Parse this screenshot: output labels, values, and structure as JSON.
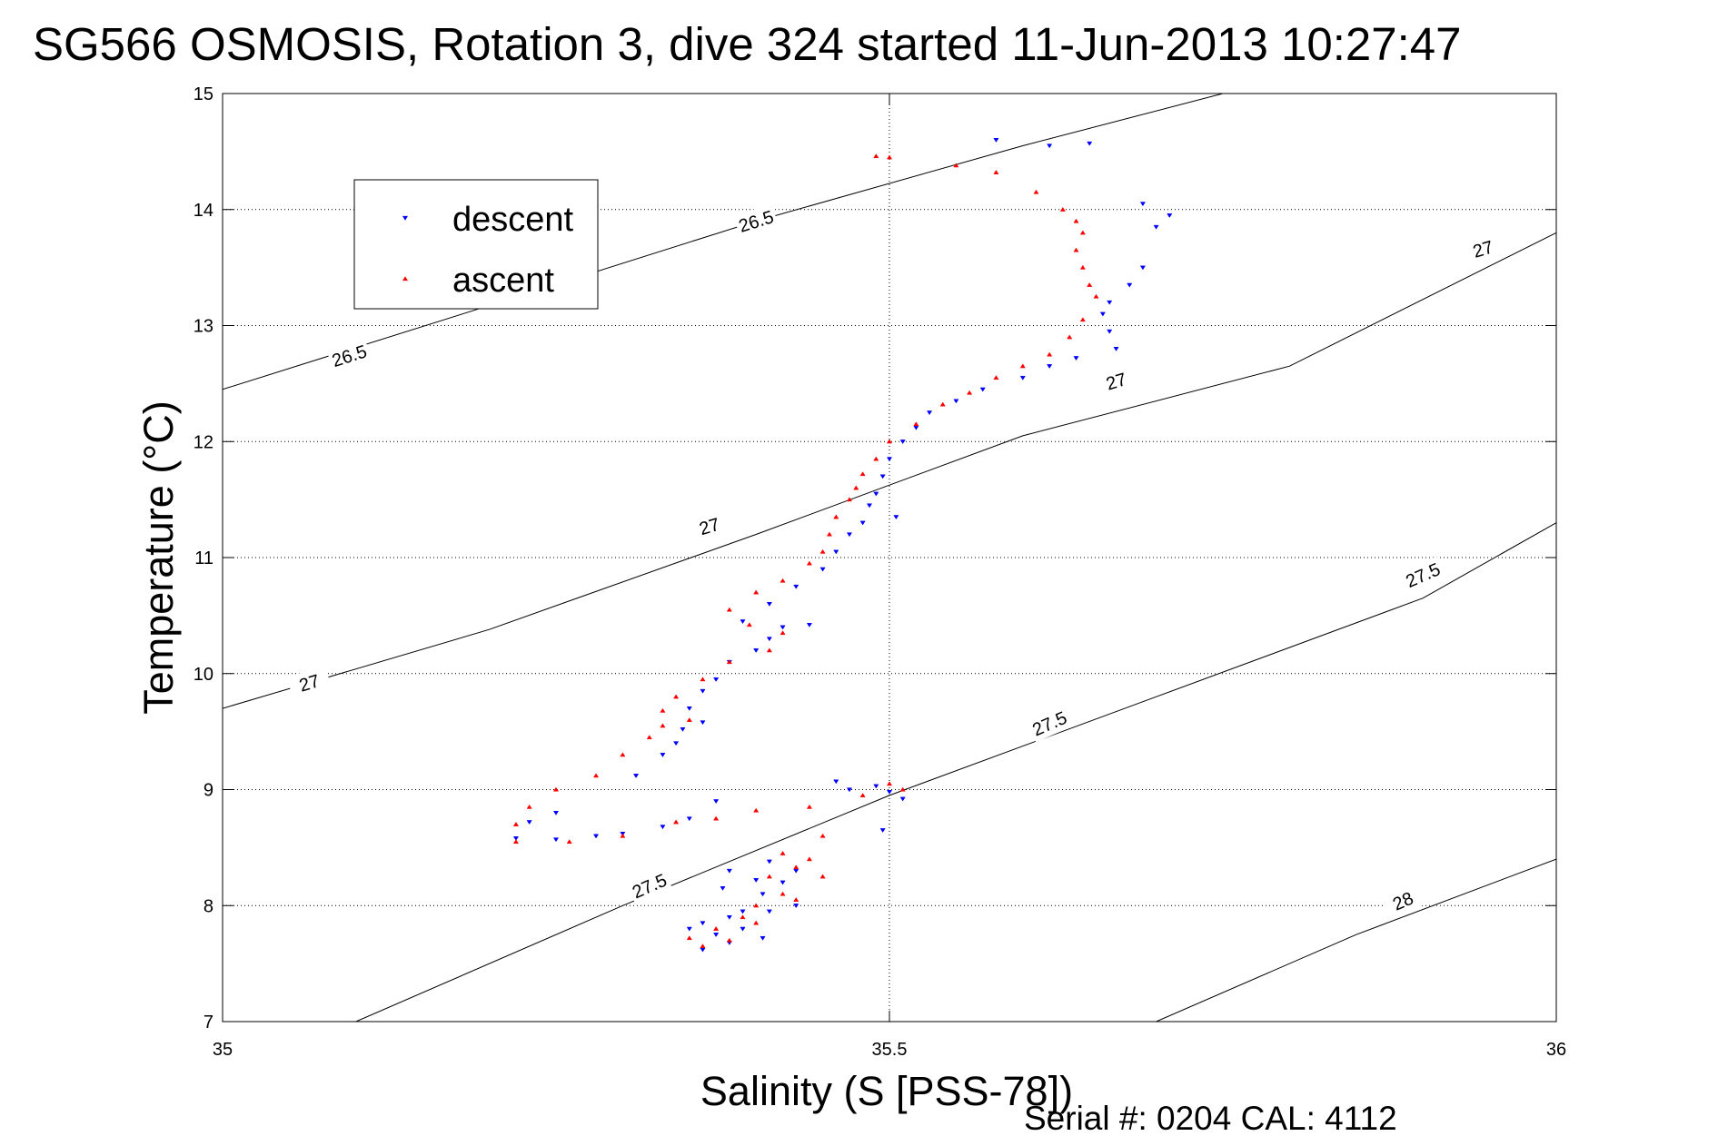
{
  "chart_data": {
    "type": "scatter",
    "title": "SG566 OSMOSIS, Rotation 3, dive 324 started 11-Jun-2013 10:27:47",
    "xlabel": "Salinity (S [PSS-78])",
    "ylabel": "Temperature (°C)",
    "xlim": [
      35,
      36
    ],
    "ylim": [
      7,
      15
    ],
    "xticks": [
      35,
      35.5,
      36
    ],
    "yticks": [
      7,
      8,
      9,
      10,
      11,
      12,
      13,
      14,
      15
    ],
    "grid": true,
    "legend_position": "top-left",
    "footer": "Serial #: 0204  CAL: 4112",
    "density_contours": [
      {
        "level": "26.5",
        "points": [
          [
            35.0,
            12.45
          ],
          [
            35.18,
            13.1
          ],
          [
            35.4,
            13.9
          ],
          [
            35.6,
            14.55
          ],
          [
            35.75,
            15.0
          ]
        ],
        "labels": [
          [
            35.095,
            12.74
          ],
          [
            35.4,
            13.9
          ]
        ]
      },
      {
        "level": "27",
        "points": [
          [
            35.0,
            9.7
          ],
          [
            35.2,
            10.38
          ],
          [
            35.4,
            11.2
          ],
          [
            35.6,
            12.05
          ],
          [
            35.8,
            12.65
          ],
          [
            36.0,
            13.8
          ]
        ],
        "labels": [
          [
            35.065,
            9.92
          ],
          [
            35.365,
            11.27
          ],
          [
            35.67,
            12.52
          ],
          [
            35.945,
            13.66
          ]
        ]
      },
      {
        "level": "27.5",
        "points": [
          [
            35.1,
            7.0
          ],
          [
            35.3,
            8.0
          ],
          [
            35.5,
            8.95
          ],
          [
            35.7,
            9.8
          ],
          [
            35.9,
            10.65
          ],
          [
            36.0,
            11.3
          ]
        ],
        "labels": [
          [
            35.32,
            8.17
          ],
          [
            35.62,
            9.57
          ],
          [
            35.9,
            10.85
          ]
        ]
      },
      {
        "level": "28",
        "points": [
          [
            35.7,
            7.0
          ],
          [
            35.85,
            7.75
          ],
          [
            36.0,
            8.4
          ]
        ],
        "labels": [
          [
            35.885,
            8.04
          ]
        ]
      }
    ],
    "series": [
      {
        "name": "descent",
        "color": "#0000ff",
        "marker": "triangle-down",
        "points": [
          [
            35.58,
            14.6
          ],
          [
            35.65,
            14.57
          ],
          [
            35.62,
            14.55
          ],
          [
            35.69,
            14.05
          ],
          [
            35.71,
            13.95
          ],
          [
            35.7,
            13.85
          ],
          [
            35.69,
            13.5
          ],
          [
            35.68,
            13.35
          ],
          [
            35.665,
            13.2
          ],
          [
            35.66,
            13.1
          ],
          [
            35.665,
            12.95
          ],
          [
            35.67,
            12.8
          ],
          [
            35.64,
            12.72
          ],
          [
            35.62,
            12.65
          ],
          [
            35.6,
            12.55
          ],
          [
            35.57,
            12.45
          ],
          [
            35.55,
            12.35
          ],
          [
            35.53,
            12.25
          ],
          [
            35.52,
            12.12
          ],
          [
            35.51,
            12.0
          ],
          [
            35.5,
            11.85
          ],
          [
            35.495,
            11.7
          ],
          [
            35.49,
            11.55
          ],
          [
            35.485,
            11.45
          ],
          [
            35.505,
            11.35
          ],
          [
            35.48,
            11.3
          ],
          [
            35.47,
            11.2
          ],
          [
            35.46,
            11.05
          ],
          [
            35.45,
            10.9
          ],
          [
            35.43,
            10.75
          ],
          [
            35.41,
            10.6
          ],
          [
            35.39,
            10.45
          ],
          [
            35.42,
            10.4
          ],
          [
            35.44,
            10.42
          ],
          [
            35.41,
            10.3
          ],
          [
            35.4,
            10.2
          ],
          [
            35.38,
            10.1
          ],
          [
            35.37,
            9.95
          ],
          [
            35.36,
            9.85
          ],
          [
            35.35,
            9.7
          ],
          [
            35.36,
            9.58
          ],
          [
            35.345,
            9.52
          ],
          [
            35.34,
            9.4
          ],
          [
            35.33,
            9.3
          ],
          [
            35.31,
            9.12
          ],
          [
            35.37,
            8.9
          ],
          [
            35.35,
            8.75
          ],
          [
            35.33,
            8.68
          ],
          [
            35.3,
            8.62
          ],
          [
            35.28,
            8.6
          ],
          [
            35.25,
            8.57
          ],
          [
            35.22,
            8.58
          ],
          [
            35.23,
            8.72
          ],
          [
            35.25,
            8.8
          ],
          [
            35.46,
            9.07
          ],
          [
            35.47,
            9.0
          ],
          [
            35.49,
            9.03
          ],
          [
            35.5,
            8.98
          ],
          [
            35.51,
            8.92
          ],
          [
            35.495,
            8.65
          ],
          [
            35.41,
            8.38
          ],
          [
            35.43,
            8.3
          ],
          [
            35.42,
            8.2
          ],
          [
            35.405,
            8.1
          ],
          [
            35.43,
            8.0
          ],
          [
            35.41,
            7.95
          ],
          [
            35.38,
            7.9
          ],
          [
            35.39,
            7.8
          ],
          [
            35.37,
            7.75
          ],
          [
            35.38,
            7.68
          ],
          [
            35.36,
            7.62
          ],
          [
            35.4,
            8.22
          ],
          [
            35.38,
            8.3
          ],
          [
            35.375,
            8.15
          ],
          [
            35.39,
            7.95
          ],
          [
            35.36,
            7.85
          ],
          [
            35.35,
            7.8
          ],
          [
            35.405,
            7.72
          ]
        ]
      },
      {
        "name": "ascent",
        "color": "#ff0000",
        "marker": "triangle-up",
        "points": [
          [
            35.49,
            14.46
          ],
          [
            35.5,
            14.45
          ],
          [
            35.55,
            14.38
          ],
          [
            35.58,
            14.32
          ],
          [
            35.61,
            14.15
          ],
          [
            35.63,
            14.0
          ],
          [
            35.64,
            13.9
          ],
          [
            35.645,
            13.8
          ],
          [
            35.64,
            13.65
          ],
          [
            35.645,
            13.5
          ],
          [
            35.65,
            13.35
          ],
          [
            35.655,
            13.25
          ],
          [
            35.645,
            13.05
          ],
          [
            35.635,
            12.9
          ],
          [
            35.62,
            12.75
          ],
          [
            35.6,
            12.65
          ],
          [
            35.58,
            12.55
          ],
          [
            35.56,
            12.42
          ],
          [
            35.54,
            12.32
          ],
          [
            35.52,
            12.15
          ],
          [
            35.5,
            12.0
          ],
          [
            35.49,
            11.85
          ],
          [
            35.48,
            11.72
          ],
          [
            35.475,
            11.6
          ],
          [
            35.47,
            11.5
          ],
          [
            35.46,
            11.35
          ],
          [
            35.455,
            11.2
          ],
          [
            35.45,
            11.05
          ],
          [
            35.44,
            10.95
          ],
          [
            35.42,
            10.8
          ],
          [
            35.4,
            10.7
          ],
          [
            35.38,
            10.55
          ],
          [
            35.395,
            10.42
          ],
          [
            35.42,
            10.35
          ],
          [
            35.41,
            10.2
          ],
          [
            35.38,
            10.1
          ],
          [
            35.36,
            9.95
          ],
          [
            35.34,
            9.8
          ],
          [
            35.33,
            9.68
          ],
          [
            35.35,
            9.6
          ],
          [
            35.33,
            9.55
          ],
          [
            35.32,
            9.45
          ],
          [
            35.3,
            9.3
          ],
          [
            35.28,
            9.12
          ],
          [
            35.25,
            9.0
          ],
          [
            35.23,
            8.85
          ],
          [
            35.22,
            8.7
          ],
          [
            35.22,
            8.55
          ],
          [
            35.26,
            8.55
          ],
          [
            35.3,
            8.6
          ],
          [
            35.34,
            8.72
          ],
          [
            35.37,
            8.75
          ],
          [
            35.4,
            8.82
          ],
          [
            35.44,
            8.85
          ],
          [
            35.48,
            8.95
          ],
          [
            35.5,
            9.05
          ],
          [
            35.51,
            9.0
          ],
          [
            35.45,
            8.6
          ],
          [
            35.42,
            8.45
          ],
          [
            35.43,
            8.33
          ],
          [
            35.41,
            8.25
          ],
          [
            35.42,
            8.1
          ],
          [
            35.4,
            8.0
          ],
          [
            35.39,
            7.9
          ],
          [
            35.37,
            7.8
          ],
          [
            35.35,
            7.72
          ],
          [
            35.36,
            7.65
          ],
          [
            35.38,
            7.7
          ],
          [
            35.4,
            7.85
          ],
          [
            35.43,
            8.05
          ],
          [
            35.45,
            8.25
          ],
          [
            35.44,
            8.4
          ]
        ]
      }
    ]
  }
}
